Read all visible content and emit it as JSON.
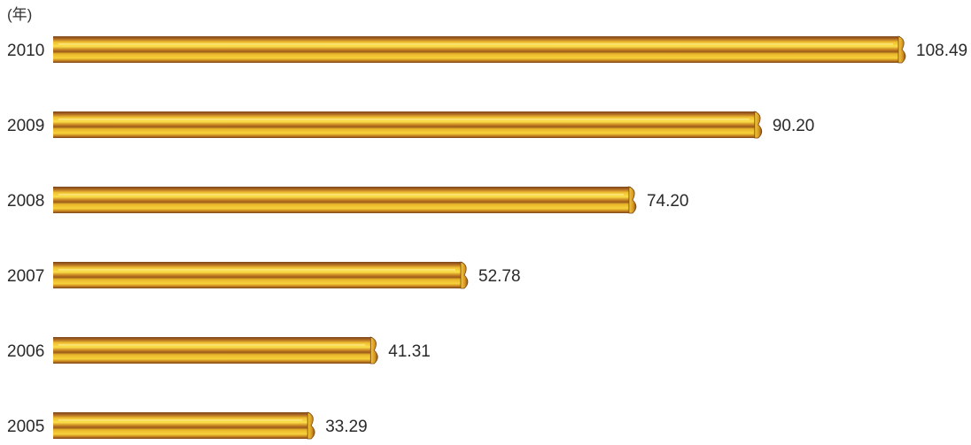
{
  "chart_data": {
    "type": "bar",
    "orientation": "horizontal",
    "unit_label": "(年)",
    "categories": [
      "2010",
      "2009",
      "2008",
      "2007",
      "2006",
      "2005"
    ],
    "values": [
      108.49,
      90.2,
      74.2,
      52.78,
      41.31,
      33.29
    ],
    "data_labels": [
      "108.49",
      "90.20",
      "74.20",
      "52.78",
      "41.31",
      "33.29"
    ],
    "title": "",
    "xlabel": "",
    "ylabel": "",
    "xlim": [
      0,
      108.49
    ],
    "grid": false,
    "legend": "none",
    "colors": {
      "bar_light": "#f7d23a",
      "bar_mid": "#e3a81c",
      "bar_dark": "#9a5a1c",
      "bar_edge": "#7a4418"
    }
  }
}
